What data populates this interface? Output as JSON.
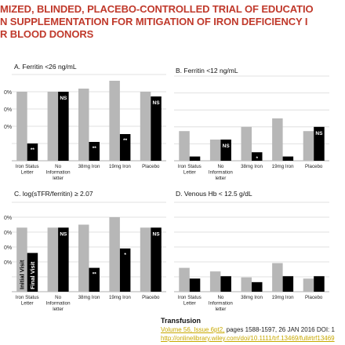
{
  "title": {
    "line1": "MIZED, BLINDED, PLACEBO-CONTROLLED TRIAL OF EDUCATIO",
    "line2": "N SUPPLEMENTATION FOR MITIGATION OF IRON DEFICIENCY I",
    "line3": "R BLOOD DONORS"
  },
  "colors": {
    "initial": "#b7b7b7",
    "final": "#000000",
    "title": "#c0392b",
    "link": "#c8a800"
  },
  "chart_data": [
    {
      "type": "bar",
      "title": "A. Ferritin <26 ng/mL",
      "categories": [
        "Iron Status Letter",
        "No Information letter",
        "38mg Iron",
        "19mg Iron",
        "Placebo"
      ],
      "ytick_labels": [
        "",
        "0%",
        "0%",
        "0%",
        "0%"
      ],
      "series": [
        {
          "name": "Initial Visit",
          "values": [
            64,
            64,
            66,
            71,
            64
          ]
        },
        {
          "name": "Final Visit",
          "values": [
            31,
            64,
            32,
            37,
            61
          ]
        }
      ],
      "annotations": [
        "**",
        "NS",
        "**",
        "**",
        "NS"
      ],
      "ylim": [
        20,
        75
      ]
    },
    {
      "type": "bar",
      "title": "B. Ferritin <12 ng/mL",
      "categories": [
        "Iron Status Letter",
        "No Information letter",
        "38mg Iron",
        "19mg Iron",
        "Placebo"
      ],
      "series": [
        {
          "name": "Initial Visit",
          "values": [
            22,
            20,
            23,
            25,
            22
          ]
        },
        {
          "name": "Final Visit",
          "values": [
            16,
            20,
            17,
            16,
            23
          ]
        }
      ],
      "annotations": [
        "**",
        "NS",
        "*",
        "**",
        "NS"
      ],
      "ylim": [
        15,
        35
      ]
    },
    {
      "type": "bar",
      "title": "C. log(sTFR/ferritin) ≥ 2.07",
      "categories": [
        "Iron Status Letter",
        "No Information letter",
        "38mg Iron",
        "19mg Iron",
        "Placebo"
      ],
      "ytick_labels": [
        "",
        "0%",
        "0%",
        "0%",
        "0%",
        "0%"
      ],
      "series": [
        {
          "name": "Initial Visit",
          "values": [
            63,
            63,
            65,
            70,
            63
          ]
        },
        {
          "name": "Final Visit",
          "values": [
            46,
            63,
            36,
            49,
            63
          ]
        }
      ],
      "annotations": [
        "",
        "NS",
        "**",
        "*",
        "NS"
      ],
      "ylim": [
        20,
        80
      ]
    },
    {
      "type": "bar",
      "title": "D. Venous Hb < 12.5 g/dL",
      "categories": [
        "Iron Status Letter",
        "No Information letter",
        "38mg Iron",
        "19mg Iron",
        "Placebo"
      ],
      "series": [
        {
          "name": "Initial Visit",
          "values": [
            21.5,
            21.2,
            20.7,
            21.9,
            20.6
          ]
        },
        {
          "name": "Final Visit",
          "values": [
            20.6,
            20.8,
            20.3,
            20.8,
            20.8
          ]
        }
      ],
      "annotations": [
        "",
        "",
        "",
        "",
        ""
      ],
      "ylim": [
        19.5,
        27
      ]
    }
  ],
  "footer": {
    "journal": "Transfusion",
    "vol_link": "Volume 56, Issue 6pt2,",
    "pages": " pages 1588-1597, 26 JAN 2016 DOI: 1",
    "url": "http://onlinelibrary.wiley.com/doi/10.1111/trf.13469/full#trf13469"
  }
}
